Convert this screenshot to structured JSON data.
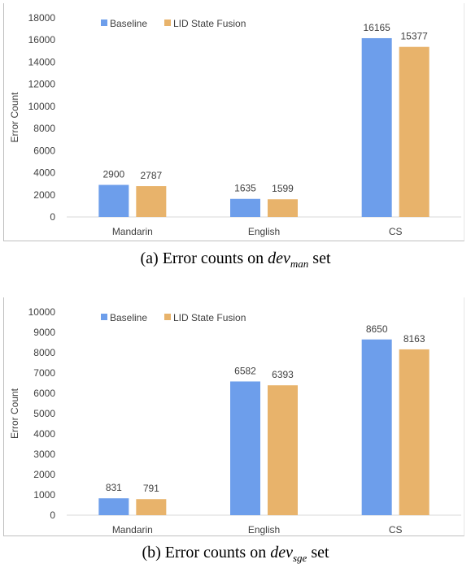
{
  "captions": [
    {
      "prefix": "(a) Error counts on ",
      "math": "dev",
      "sub": "man",
      "suffix": " set"
    },
    {
      "prefix": "(b) Error counts on ",
      "math": "dev",
      "sub": "sge",
      "suffix": " set"
    }
  ],
  "colors": {
    "baseline": "#6d9eeb",
    "fusion": "#e8b36b",
    "axis": "#d9d9d9",
    "text": "#404040"
  },
  "chart_data": [
    {
      "type": "bar",
      "categories": [
        "Mandarin",
        "English",
        "CS"
      ],
      "series": [
        {
          "name": "Baseline",
          "values": [
            2900,
            1635,
            16165
          ]
        },
        {
          "name": "LID State Fusion",
          "values": [
            2787,
            1599,
            15377
          ]
        }
      ],
      "ylabel": "Error Count",
      "ylim": [
        0,
        18000
      ],
      "yticks": [
        0,
        2000,
        4000,
        6000,
        8000,
        10000,
        12000,
        14000,
        16000,
        18000
      ],
      "legend": "top-left",
      "grid": false
    },
    {
      "type": "bar",
      "categories": [
        "Mandarin",
        "English",
        "CS"
      ],
      "series": [
        {
          "name": "Baseline",
          "values": [
            831,
            6582,
            8650
          ]
        },
        {
          "name": "LID State Fusion",
          "values": [
            791,
            6393,
            8163
          ]
        }
      ],
      "ylabel": "Error Count",
      "ylim": [
        0,
        10000
      ],
      "yticks": [
        0,
        1000,
        2000,
        3000,
        4000,
        5000,
        6000,
        7000,
        8000,
        9000,
        10000
      ],
      "legend": "top-left",
      "grid": false
    }
  ]
}
